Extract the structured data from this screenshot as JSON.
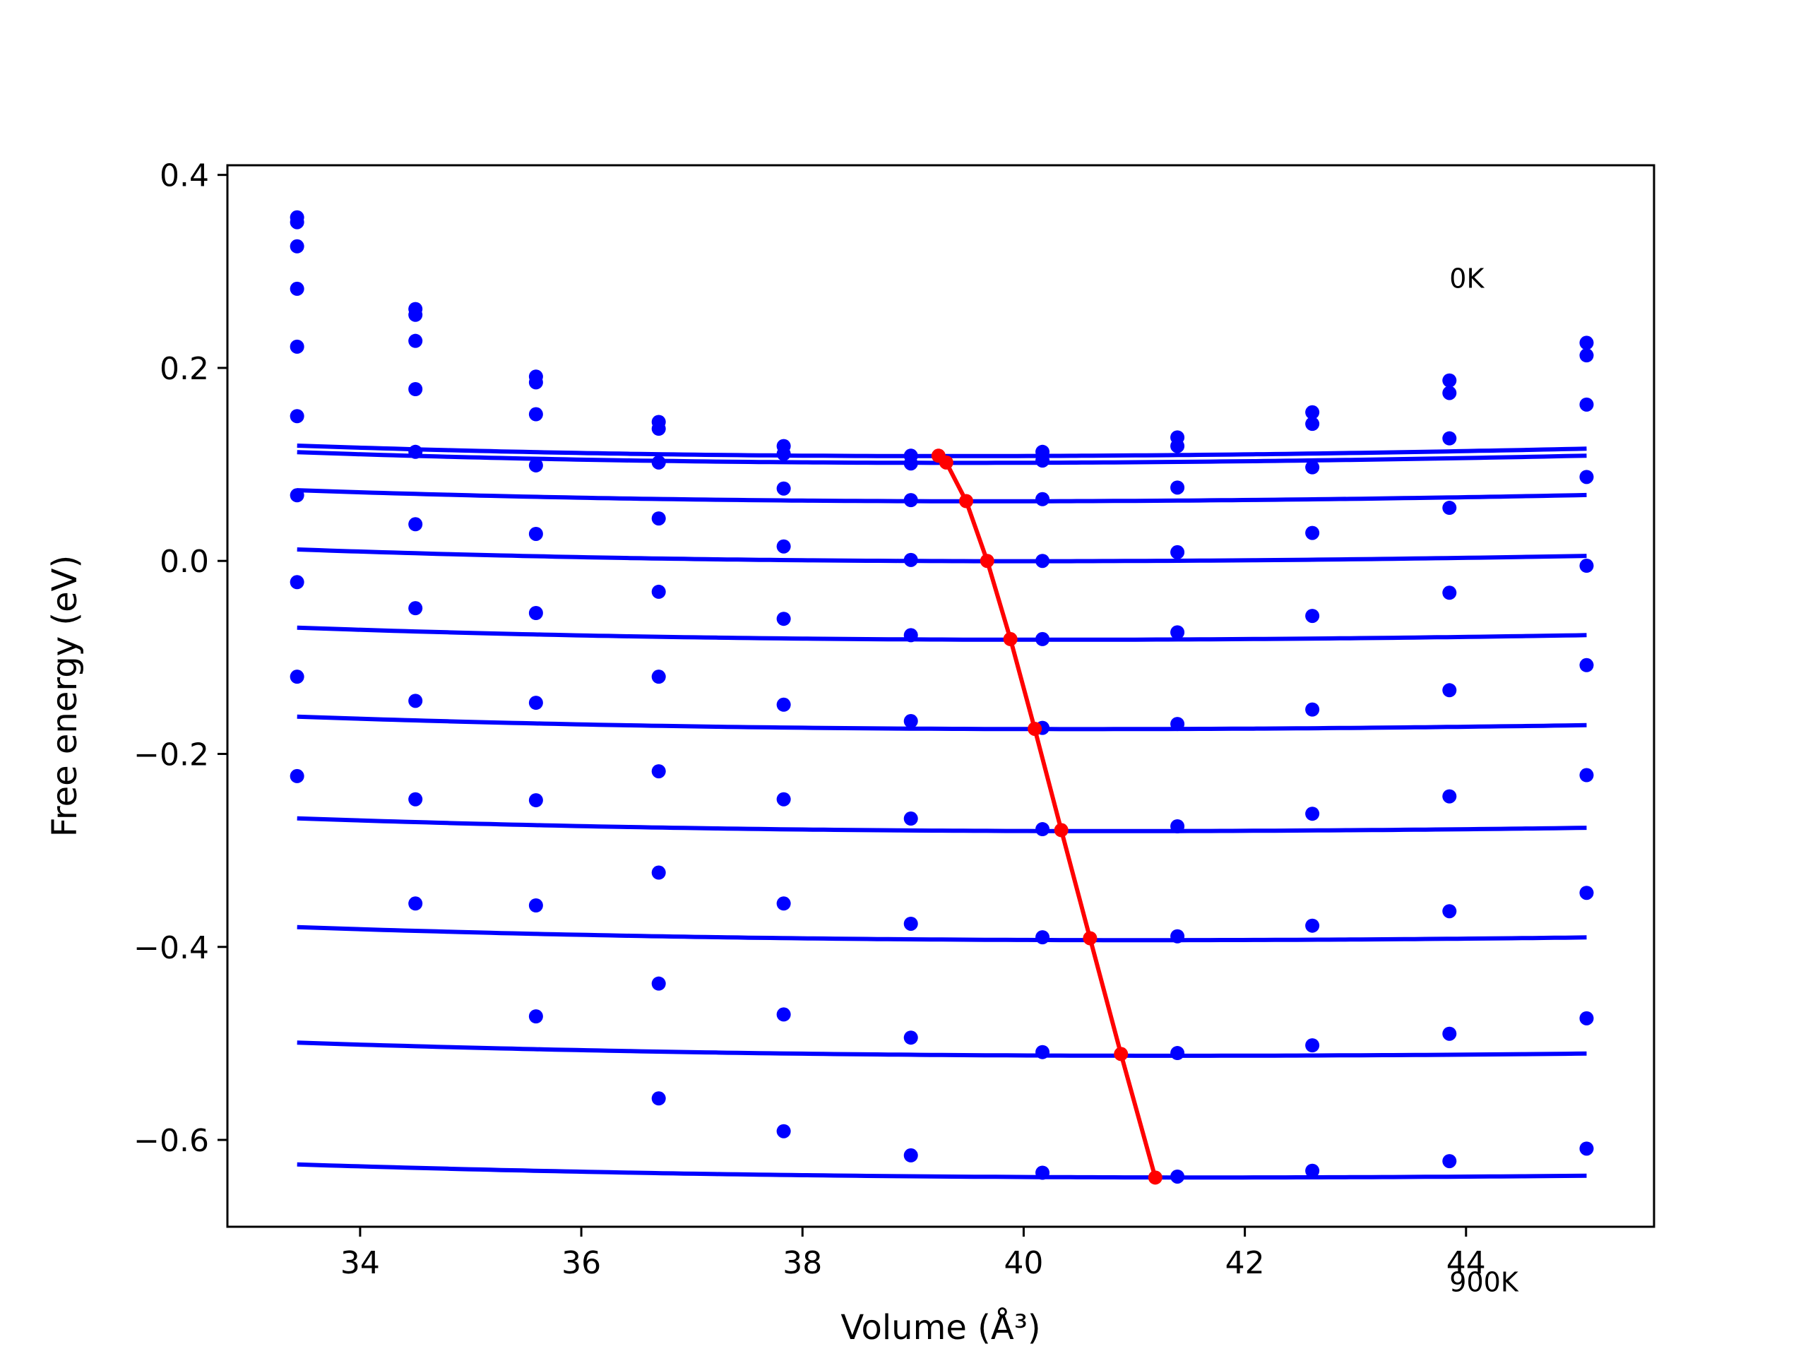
{
  "chart_data": {
    "type": "line",
    "xlabel": "Volume (Å³)",
    "ylabel": "Free energy (eV)",
    "xlim": [
      32.8,
      45.7
    ],
    "ylim": [
      -0.69,
      0.41
    ],
    "xticks": [
      34,
      36,
      38,
      40,
      42,
      44
    ],
    "yticks": [
      -0.6,
      -0.4,
      -0.2,
      0.0,
      0.2,
      0.4
    ],
    "xtick_labels": [
      "34",
      "36",
      "38",
      "40",
      "42",
      "44"
    ],
    "ytick_labels": [
      "−0.6",
      "−0.4",
      "−0.2",
      "0.0",
      "0.2",
      "0.4"
    ],
    "grid": false,
    "colors": {
      "series": "#0000ff",
      "minimum": "#ff0000"
    },
    "annotations": [
      {
        "text": "0K",
        "x": 43.85,
        "y": 0.283
      },
      {
        "text": "900K",
        "x": 43.85,
        "y": -0.757
      }
    ],
    "volumes": [
      33.43,
      34.5,
      35.59,
      36.7,
      37.83,
      38.98,
      40.17,
      41.39,
      42.61,
      43.85,
      45.09
    ],
    "series": [
      {
        "values": [
          0.351,
          0.255,
          0.185,
          0.137,
          0.111,
          0.101,
          0.104,
          0.119,
          0.142,
          0.174,
          0.213
        ],
        "fit": [
          0.4103,
          0.1016,
          39.4
        ]
      },
      {
        "values": [
          0.356,
          0.261,
          0.191,
          0.144,
          0.119,
          0.109,
          0.113,
          0.128,
          0.154,
          0.187,
          0.226
        ],
        "fit": [
          0.4127,
          0.1086,
          39.32
        ]
      },
      {
        "values": [
          0.326,
          0.228,
          0.152,
          0.102,
          0.075,
          0.063,
          0.064,
          0.076,
          0.097,
          0.127,
          0.162
        ],
        "fit": [
          0.3933,
          0.0618,
          39.66
        ]
      },
      {
        "values": [
          0.282,
          0.178,
          0.099,
          0.044,
          0.015,
          0.001,
          0.0,
          0.009,
          0.029,
          0.055,
          0.087
        ],
        "fit": [
          0.3802,
          -0.0003,
          39.98
        ]
      },
      {
        "values": [
          0.222,
          0.113,
          0.028,
          -0.032,
          -0.06,
          -0.077,
          -0.081,
          -0.074,
          -0.057,
          -0.033,
          -0.005
        ],
        "fit": [
          0.3657,
          -0.0817,
          40.22
        ]
      },
      {
        "values": [
          0.15,
          0.038,
          -0.054,
          -0.12,
          -0.149,
          -0.166,
          -0.173,
          -0.169,
          -0.154,
          -0.134,
          -0.108
        ],
        "fit": [
          0.3522,
          -0.1743,
          40.49
        ]
      },
      {
        "values": [
          0.068,
          -0.049,
          -0.147,
          -0.218,
          -0.247,
          -0.267,
          -0.278,
          -0.275,
          -0.262,
          -0.244,
          -0.222
        ],
        "fit": [
          0.3362,
          -0.28,
          40.76
        ]
      },
      {
        "values": [
          -0.022,
          -0.145,
          -0.248,
          -0.323,
          -0.355,
          -0.376,
          -0.39,
          -0.389,
          -0.378,
          -0.363,
          -0.344
        ],
        "fit": [
          0.3204,
          -0.393,
          41.04
        ]
      },
      {
        "values": [
          -0.12,
          -0.247,
          -0.357,
          -0.438,
          -0.47,
          -0.494,
          -0.509,
          -0.51,
          -0.502,
          -0.49,
          -0.474
        ],
        "fit": [
          0.3023,
          -0.5128,
          41.34
        ]
      },
      {
        "values": [
          -0.223,
          -0.355,
          -0.472,
          -0.557,
          -0.591,
          -0.616,
          -0.634,
          -0.638,
          -0.632,
          -0.622,
          -0.609
        ],
        "fit": [
          0.2799,
          -0.6389,
          41.64
        ]
      }
    ],
    "minimum_line": {
      "x": [
        39.23,
        39.3,
        39.48,
        39.67,
        39.88,
        40.1,
        40.34,
        40.6,
        40.88,
        41.19
      ],
      "y": [
        0.109,
        0.102,
        0.062,
        0.0,
        -0.081,
        -0.174,
        -0.279,
        -0.391,
        -0.511,
        -0.639
      ]
    }
  }
}
